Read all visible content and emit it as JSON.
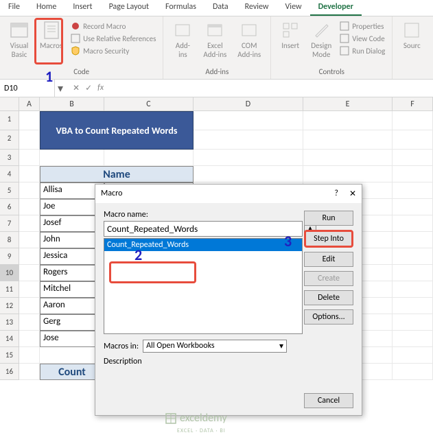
{
  "ribbon": {
    "tabs": [
      "File",
      "Home",
      "Insert",
      "Page Layout",
      "Formulas",
      "Data",
      "Review",
      "View",
      "Developer"
    ],
    "active_tab": "Developer",
    "groups": {
      "code": {
        "label": "Code",
        "visual_basic": "Visual\nBasic",
        "macros": "Macros",
        "record": "Record Macro",
        "relative": "Use Relative References",
        "security": "Macro Security"
      },
      "addins": {
        "label": "Add-ins",
        "addins": "Add-\nins",
        "excel": "Excel\nAdd-ins",
        "com": "COM\nAdd-ins"
      },
      "controls": {
        "label": "Controls",
        "insert": "Insert",
        "design": "Design\nMode",
        "properties": "Properties",
        "view_code": "View Code",
        "run_dialog": "Run Dialog"
      },
      "xml": {
        "source": "Sourc"
      }
    }
  },
  "name_box": "D10",
  "columns": [
    "A",
    "B",
    "C",
    "D",
    "E",
    "F"
  ],
  "title": "VBA to Count Repeated Words",
  "table": {
    "header": "Name",
    "rows": [
      "Allisa",
      "Joe",
      "Josef",
      "John",
      "Jessica",
      "Rogers",
      "Mitchel",
      "Aaron",
      "Gerg",
      "Jose"
    ],
    "count_label": "Count"
  },
  "dialog": {
    "title": "Macro",
    "name_label": "Macro name:",
    "name_value": "Count_Repeated_Words",
    "list_item": "Count_Repeated_Words",
    "macros_in_label": "Macros in:",
    "macros_in_value": "All Open Workbooks",
    "description_label": "Description",
    "buttons": {
      "run": "Run",
      "step_into": "Step Into",
      "edit": "Edit",
      "create": "Create",
      "delete": "Delete",
      "options": "Options...",
      "cancel": "Cancel"
    }
  },
  "callouts": {
    "n1": "1",
    "n2": "2",
    "n3": "3"
  },
  "watermark": {
    "main": "exceldemy",
    "sub": "EXCEL · DATA · BI"
  },
  "colors": {
    "excel_green": "#217346",
    "ribbon_bg": "#f3f2f1",
    "title_bg": "#3b5998",
    "header_bg": "#dce6f1",
    "selection_blue": "#0078d7",
    "highlight_red": "#e74c3c",
    "callout_blue": "#2020c0"
  }
}
